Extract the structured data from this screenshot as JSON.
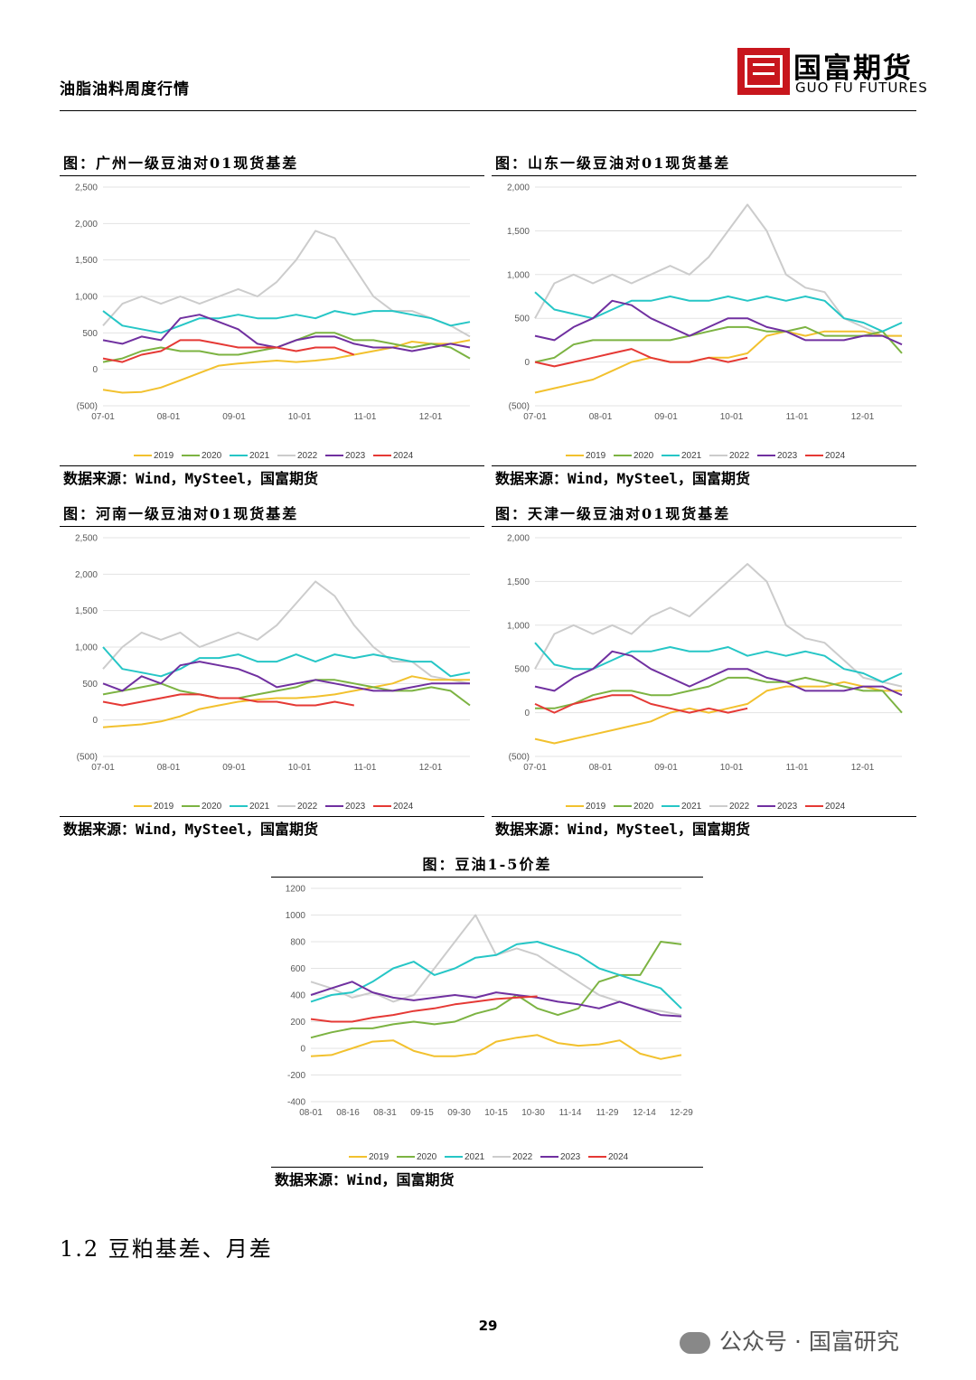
{
  "header": {
    "title": "油脂油料周度行情",
    "logo_cn": "国富期货",
    "logo_en": "GUO FU FUTURES"
  },
  "colors": {
    "2019": "#f2c12e",
    "2020": "#7cb342",
    "2021": "#26c6c6",
    "2022": "#cccccc",
    "2023": "#7030a0",
    "2024": "#e53935"
  },
  "basis_charts": [
    {
      "title": "图：广州一级豆油对01现货基差",
      "source": "数据来源：Wind，MySteel，国富期货",
      "chart_data": {
        "type": "line",
        "x_ticks": [
          "07-01",
          "08-01",
          "09-01",
          "10-01",
          "11-01",
          "12-01"
        ],
        "y_ticks": [
          "2,500",
          "2,000",
          "1,500",
          "1,000",
          "500",
          "0",
          "(500)"
        ],
        "ylim": [
          -500,
          2500
        ],
        "legend": [
          "2019",
          "2020",
          "2021",
          "2022",
          "2023",
          "2024"
        ],
        "series": [
          {
            "name": "2019",
            "values": [
              -280,
              -320,
              -310,
              -250,
              -150,
              -50,
              50,
              80,
              100,
              120,
              100,
              120,
              150,
              200,
              250,
              300,
              380,
              350,
              350,
              400
            ]
          },
          {
            "name": "2020",
            "values": [
              100,
              150,
              250,
              300,
              250,
              250,
              200,
              200,
              250,
              300,
              400,
              500,
              500,
              400,
              400,
              350,
              300,
              350,
              300,
              150
            ]
          },
          {
            "name": "2021",
            "values": [
              800,
              600,
              550,
              500,
              600,
              700,
              700,
              750,
              700,
              700,
              750,
              700,
              800,
              750,
              800,
              800,
              750,
              700,
              600,
              650
            ]
          },
          {
            "name": "2022",
            "values": [
              600,
              900,
              1000,
              900,
              1000,
              900,
              1000,
              1100,
              1000,
              1200,
              1500,
              1900,
              1800,
              1400,
              1000,
              800,
              800,
              700,
              600,
              450
            ]
          },
          {
            "name": "2023",
            "values": [
              400,
              350,
              450,
              400,
              700,
              750,
              650,
              550,
              350,
              300,
              400,
              450,
              450,
              350,
              300,
              300,
              250,
              300,
              350,
              300
            ]
          },
          {
            "name": "2024",
            "values": [
              150,
              100,
              200,
              250,
              400,
              400,
              350,
              300,
              300,
              300,
              250,
              300,
              300,
              200
            ]
          }
        ]
      }
    },
    {
      "title": "图：山东一级豆油对01现货基差",
      "source": "数据来源：Wind，MySteel，国富期货",
      "chart_data": {
        "type": "line",
        "x_ticks": [
          "07-01",
          "08-01",
          "09-01",
          "10-01",
          "11-01",
          "12-01"
        ],
        "y_ticks": [
          "2,000",
          "1,500",
          "1,000",
          "500",
          "0",
          "(500)"
        ],
        "ylim": [
          -500,
          2000
        ],
        "legend": [
          "2019",
          "2020",
          "2021",
          "2022",
          "2023",
          "2024"
        ],
        "series": [
          {
            "name": "2019",
            "values": [
              -350,
              -300,
              -250,
              -200,
              -100,
              0,
              50,
              0,
              0,
              50,
              50,
              100,
              300,
              350,
              300,
              350,
              350,
              350,
              300,
              300
            ]
          },
          {
            "name": "2020",
            "values": [
              0,
              50,
              200,
              250,
              250,
              250,
              250,
              250,
              300,
              350,
              400,
              400,
              350,
              350,
              400,
              300,
              300,
              300,
              350,
              100
            ]
          },
          {
            "name": "2021",
            "values": [
              800,
              600,
              550,
              500,
              600,
              700,
              700,
              750,
              700,
              700,
              750,
              700,
              750,
              700,
              750,
              700,
              500,
              450,
              350,
              450
            ]
          },
          {
            "name": "2022",
            "values": [
              500,
              900,
              1000,
              900,
              1000,
              900,
              1000,
              1100,
              1000,
              1200,
              1500,
              1800,
              1500,
              1000,
              850,
              800,
              500,
              400,
              300,
              300
            ]
          },
          {
            "name": "2023",
            "values": [
              300,
              250,
              400,
              500,
              700,
              650,
              500,
              400,
              300,
              400,
              500,
              500,
              400,
              350,
              250,
              250,
              250,
              300,
              300,
              200
            ]
          },
          {
            "name": "2024",
            "values": [
              0,
              -50,
              0,
              50,
              100,
              150,
              50,
              0,
              0,
              50,
              0,
              50
            ]
          }
        ]
      }
    },
    {
      "title": "图：河南一级豆油对01现货基差",
      "source": "数据来源：Wind，MySteel，国富期货",
      "chart_data": {
        "type": "line",
        "x_ticks": [
          "07-01",
          "08-01",
          "09-01",
          "10-01",
          "11-01",
          "12-01"
        ],
        "y_ticks": [
          "2,500",
          "2,000",
          "1,500",
          "1,000",
          "500",
          "0",
          "(500)"
        ],
        "ylim": [
          -500,
          2500
        ],
        "legend": [
          "2019",
          "2020",
          "2021",
          "2022",
          "2023",
          "2024"
        ],
        "series": [
          {
            "name": "2019",
            "values": [
              -100,
              -80,
              -60,
              -20,
              50,
              150,
              200,
              250,
              280,
              300,
              300,
              320,
              350,
              400,
              450,
              500,
              600,
              550,
              550,
              550
            ]
          },
          {
            "name": "2020",
            "values": [
              350,
              400,
              450,
              500,
              400,
              350,
              300,
              300,
              350,
              400,
              450,
              550,
              550,
              500,
              450,
              400,
              400,
              450,
              400,
              200
            ]
          },
          {
            "name": "2021",
            "values": [
              1000,
              700,
              650,
              600,
              700,
              850,
              850,
              900,
              800,
              800,
              900,
              800,
              900,
              850,
              900,
              850,
              800,
              800,
              600,
              650
            ]
          },
          {
            "name": "2022",
            "values": [
              700,
              1000,
              1200,
              1100,
              1200,
              1000,
              1100,
              1200,
              1100,
              1300,
              1600,
              1900,
              1700,
              1300,
              1000,
              800,
              800,
              600,
              550,
              500
            ]
          },
          {
            "name": "2023",
            "values": [
              500,
              400,
              600,
              500,
              750,
              800,
              750,
              700,
              600,
              450,
              500,
              550,
              500,
              450,
              400,
              400,
              450,
              500,
              500,
              500
            ]
          },
          {
            "name": "2024",
            "values": [
              250,
              200,
              250,
              300,
              350,
              350,
              300,
              300,
              250,
              250,
              200,
              200,
              250,
              200
            ]
          }
        ]
      }
    },
    {
      "title": "图：天津一级豆油对01现货基差",
      "source": "数据来源：Wind，MySteel，国富期货",
      "chart_data": {
        "type": "line",
        "x_ticks": [
          "07-01",
          "08-01",
          "09-01",
          "10-01",
          "11-01",
          "12-01"
        ],
        "y_ticks": [
          "2,000",
          "1,500",
          "1,000",
          "500",
          "0",
          "(500)"
        ],
        "ylim": [
          -500,
          2000
        ],
        "legend": [
          "2019",
          "2020",
          "2021",
          "2022",
          "2023",
          "2024"
        ],
        "series": [
          {
            "name": "2019",
            "values": [
              -300,
              -350,
              -300,
              -250,
              -200,
              -150,
              -100,
              0,
              50,
              0,
              50,
              100,
              250,
              300,
              300,
              300,
              350,
              300,
              250,
              250
            ]
          },
          {
            "name": "2020",
            "values": [
              50,
              50,
              100,
              200,
              250,
              250,
              200,
              200,
              250,
              300,
              400,
              400,
              350,
              350,
              400,
              350,
              300,
              250,
              250,
              0
            ]
          },
          {
            "name": "2021",
            "values": [
              800,
              550,
              500,
              500,
              600,
              700,
              700,
              750,
              700,
              700,
              750,
              650,
              700,
              650,
              700,
              650,
              500,
              450,
              350,
              450
            ]
          },
          {
            "name": "2022",
            "values": [
              500,
              900,
              1000,
              900,
              1000,
              900,
              1100,
              1200,
              1100,
              1300,
              1500,
              1700,
              1500,
              1000,
              850,
              800,
              600,
              400,
              350,
              300
            ]
          },
          {
            "name": "2023",
            "values": [
              300,
              250,
              400,
              500,
              700,
              650,
              500,
              400,
              300,
              400,
              500,
              500,
              400,
              350,
              250,
              250,
              250,
              300,
              300,
              200
            ]
          },
          {
            "name": "2024",
            "values": [
              100,
              0,
              100,
              150,
              200,
              200,
              100,
              50,
              0,
              50,
              0,
              50
            ]
          }
        ]
      }
    }
  ],
  "spread_chart": {
    "title": "图：豆油1-5价差",
    "source": "数据来源：Wind，国富期货",
    "chart_data": {
      "type": "line",
      "x_ticks": [
        "08-01",
        "08-16",
        "08-31",
        "09-15",
        "09-30",
        "10-15",
        "10-30",
        "11-14",
        "11-29",
        "12-14",
        "12-29"
      ],
      "y_ticks": [
        "1200",
        "1000",
        "800",
        "600",
        "400",
        "200",
        "0",
        "-200",
        "-400"
      ],
      "ylim": [
        -400,
        1200
      ],
      "legend": [
        "2019",
        "2020",
        "2021",
        "2022",
        "2023",
        "2024"
      ],
      "series": [
        {
          "name": "2019",
          "values": [
            -60,
            -50,
            0,
            50,
            60,
            -20,
            -60,
            -60,
            -40,
            50,
            80,
            100,
            40,
            20,
            30,
            60,
            -40,
            -80,
            -50
          ]
        },
        {
          "name": "2020",
          "values": [
            80,
            120,
            150,
            150,
            180,
            200,
            180,
            200,
            260,
            300,
            400,
            300,
            250,
            300,
            500,
            550,
            550,
            800,
            780
          ]
        },
        {
          "name": "2021",
          "values": [
            350,
            400,
            420,
            500,
            600,
            650,
            550,
            600,
            680,
            700,
            780,
            800,
            750,
            700,
            600,
            550,
            500,
            450,
            300
          ]
        },
        {
          "name": "2022",
          "values": [
            500,
            450,
            380,
            420,
            350,
            400,
            600,
            800,
            1000,
            700,
            750,
            700,
            600,
            500,
            400,
            350,
            300,
            280,
            250
          ]
        },
        {
          "name": "2023",
          "values": [
            400,
            450,
            500,
            420,
            380,
            360,
            380,
            400,
            380,
            420,
            400,
            380,
            350,
            330,
            300,
            350,
            300,
            250,
            240
          ]
        },
        {
          "name": "2024",
          "values": [
            220,
            200,
            200,
            230,
            250,
            280,
            300,
            330,
            350,
            370,
            380,
            390
          ]
        }
      ]
    }
  },
  "section_title": "1.2 豆粕基差、月差",
  "page_number": "29",
  "watermark": "公众号 · 国富研究"
}
